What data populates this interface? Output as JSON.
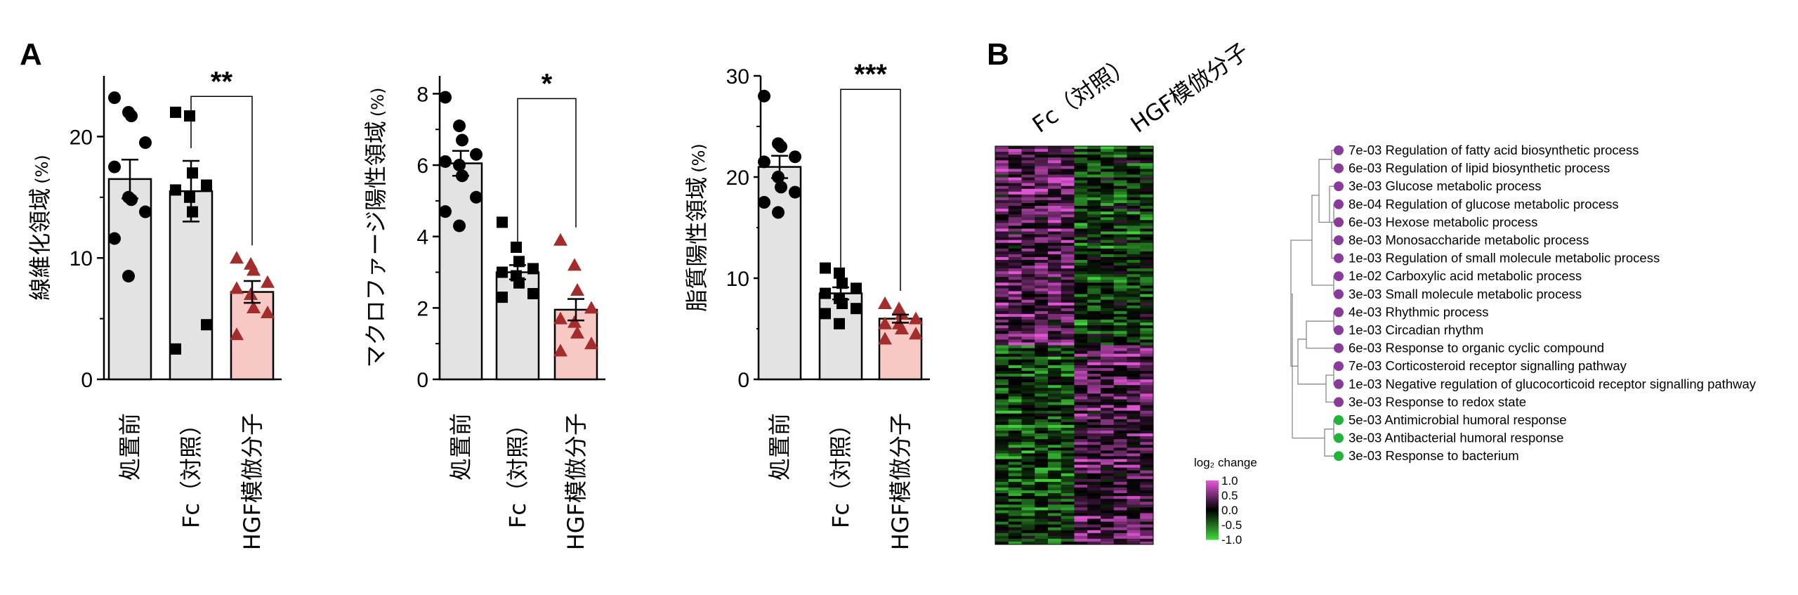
{
  "panels": {
    "a": "A",
    "b": "B"
  },
  "colors": {
    "bar_fill": "#e3e3e3",
    "hgf_bar_fill": "#f7c8c4",
    "triangle": "#a32d2d",
    "go_purple": "#8a3a9a",
    "go_green": "#22b33a",
    "heat_high": "#e055d6",
    "heat_low": "#3fd03a"
  },
  "chart_data": [
    {
      "type": "bar",
      "title": "",
      "ylabel": "線維化領域",
      "yunit": "(%)",
      "ylim": [
        0,
        25
      ],
      "yticks": [
        0,
        10,
        20
      ],
      "categories": [
        "処置前",
        "Fc（対照）",
        "HGF模倣分子"
      ],
      "means": [
        16.5,
        15.5,
        7.2
      ],
      "sem": [
        1.6,
        2.5,
        0.9
      ],
      "markers": [
        "circle",
        "square",
        "triangle"
      ],
      "points": [
        [
          23.2,
          22.0,
          21.7,
          19.5,
          17.5,
          15.0,
          14.8,
          13.8,
          11.6,
          8.5
        ],
        [
          22.0,
          21.7,
          17.0,
          16.0,
          15.6,
          15.0,
          13.8,
          4.5,
          2.5
        ],
        [
          10.0,
          9.5,
          9.0,
          8.0,
          7.5,
          7.0,
          5.9,
          5.5,
          3.7
        ]
      ],
      "significance": [
        {
          "from": 1,
          "to": 2,
          "label": "**",
          "y": 24
        }
      ]
    },
    {
      "type": "bar",
      "title": "",
      "ylabel": "マクロファージ陽性領域",
      "yunit": "(%)",
      "ylim": [
        0,
        8.5
      ],
      "yticks": [
        0,
        2,
        4,
        6,
        8
      ],
      "categories": [
        "処置前",
        "Fc（対照）",
        "HGF模倣分子"
      ],
      "means": [
        6.05,
        3.0,
        1.95
      ],
      "sem": [
        0.35,
        0.2,
        0.3
      ],
      "markers": [
        "circle",
        "square",
        "triangle"
      ],
      "points": [
        [
          7.9,
          7.1,
          6.7,
          6.3,
          6.1,
          6.0,
          5.7,
          5.1,
          4.7,
          4.3
        ],
        [
          4.4,
          3.7,
          3.3,
          3.1,
          3.0,
          2.9,
          2.7,
          2.4,
          2.3
        ],
        [
          3.9,
          3.2,
          2.5,
          2.0,
          1.7,
          1.6,
          1.3,
          1.0,
          0.8
        ]
      ],
      "significance": [
        {
          "from": 1,
          "to": 2,
          "label": "*",
          "y": 8.1
        }
      ]
    },
    {
      "type": "bar",
      "title": "",
      "ylabel": "脂質陽性領域",
      "yunit": "(%)",
      "ylim": [
        0,
        30
      ],
      "yticks": [
        0,
        10,
        20,
        30
      ],
      "categories": [
        "処置前",
        "Fc（対照）",
        "HGF模倣分子"
      ],
      "means": [
        21.0,
        8.5,
        6.0
      ],
      "sem": [
        1.1,
        0.6,
        0.4
      ],
      "markers": [
        "circle",
        "square",
        "triangle"
      ],
      "points": [
        [
          28.0,
          23.3,
          23.0,
          22.0,
          21.5,
          20.0,
          19.0,
          18.5,
          17.5,
          16.5
        ],
        [
          11.0,
          10.5,
          9.5,
          9.0,
          8.5,
          8.0,
          7.5,
          7.0,
          6.5,
          5.5
        ],
        [
          7.5,
          7.0,
          6.5,
          6.0,
          5.5,
          5.5,
          5.0,
          4.5,
          4.0
        ]
      ],
      "significance": [
        {
          "from": 1,
          "to": 2,
          "label": "***",
          "y": 29.5
        }
      ]
    },
    {
      "type": "heatmap",
      "title": "",
      "column_groups": [
        "Fc（対照）",
        "HGF模倣分子"
      ],
      "n_columns": 12,
      "legend_title": "log₂ change",
      "legend_ticks": [
        "1.0",
        "0.5",
        "0.0",
        "-0.5",
        "-1.0"
      ],
      "vlim": [
        -1.0,
        1.0
      ]
    },
    {
      "type": "table",
      "title": "",
      "terms": [
        {
          "p": "7e-03",
          "label": "Regulation of fatty acid biosynthetic process",
          "color": "purple"
        },
        {
          "p": "6e-03",
          "label": "Regulation of lipid biosynthetic process",
          "color": "purple"
        },
        {
          "p": "3e-03",
          "label": "Glucose metabolic process",
          "color": "purple"
        },
        {
          "p": "8e-04",
          "label": "Regulation of glucose metabolic process",
          "color": "purple"
        },
        {
          "p": "6e-03",
          "label": "Hexose metabolic process",
          "color": "purple"
        },
        {
          "p": "8e-03",
          "label": "Monosaccharide metabolic process",
          "color": "purple"
        },
        {
          "p": "1e-03",
          "label": "Regulation of small molecule metabolic process",
          "color": "purple"
        },
        {
          "p": "1e-02",
          "label": "Carboxylic acid metabolic process",
          "color": "purple"
        },
        {
          "p": "3e-03",
          "label": "Small molecule metabolic process",
          "color": "purple"
        },
        {
          "p": "4e-03",
          "label": "Rhythmic process",
          "color": "purple"
        },
        {
          "p": "1e-03",
          "label": "Circadian rhythm",
          "color": "purple"
        },
        {
          "p": "6e-03",
          "label": "Response to organic cyclic compound",
          "color": "purple"
        },
        {
          "p": "7e-03",
          "label": "Corticosteroid receptor signalling pathway",
          "color": "purple"
        },
        {
          "p": "1e-03",
          "label": "Negative regulation of glucocorticoid receptor signalling pathway",
          "color": "purple"
        },
        {
          "p": "3e-03",
          "label": "Response to redox state",
          "color": "purple"
        },
        {
          "p": "5e-03",
          "label": "Antimicrobial humoral response",
          "color": "green"
        },
        {
          "p": "3e-03",
          "label": "Antibacterial humoral response",
          "color": "green"
        },
        {
          "p": "3e-03",
          "label": "Response to bacterium",
          "color": "green"
        }
      ]
    }
  ]
}
